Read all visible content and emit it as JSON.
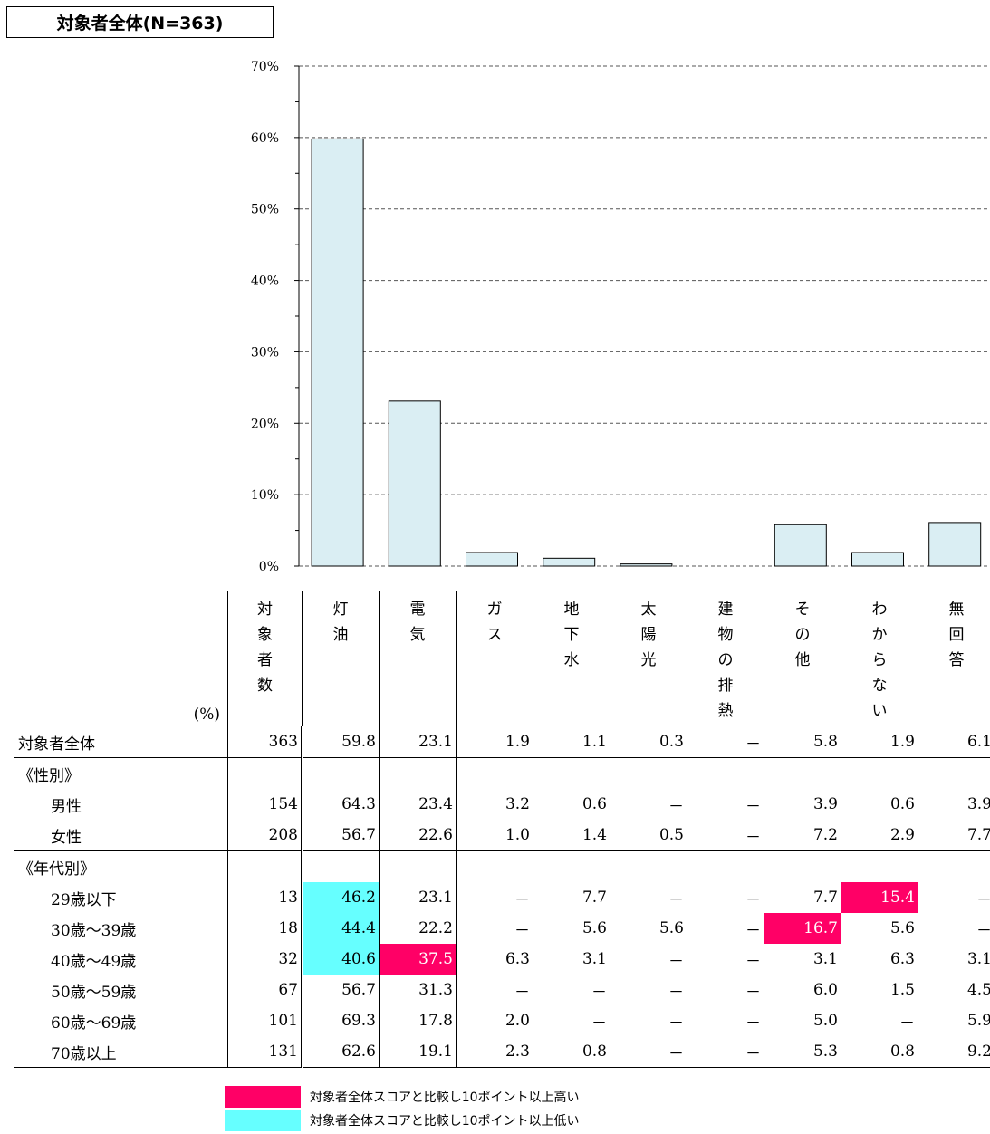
{
  "title": "対象者全体(N=363)",
  "chart_data": {
    "type": "bar",
    "categories": [
      "灯油",
      "電気",
      "ガス",
      "地下水",
      "太陽光",
      "建物の排熱",
      "その他",
      "わからない",
      "無回答"
    ],
    "values": [
      59.8,
      23.1,
      1.9,
      1.1,
      0.3,
      0,
      5.8,
      1.9,
      6.1
    ],
    "yticks": [
      "0%",
      "10%",
      "20%",
      "30%",
      "40%",
      "50%",
      "60%",
      "70%"
    ],
    "ylim": [
      0,
      70
    ],
    "grid": "horizontal dashed",
    "bar_color": "#daeef3"
  },
  "table": {
    "unit": "(%)",
    "headers": [
      "対象者数",
      "灯油",
      "電気",
      "ガス",
      "地下水",
      "太陽光",
      "建物の排熱",
      "その他",
      "わからない",
      "無回答"
    ],
    "rows": [
      {
        "label": "対象者全体",
        "cells": [
          "363",
          "59.8",
          "23.1",
          "1.9",
          "1.1",
          "0.3",
          "－",
          "5.8",
          "1.9",
          "6.1"
        ]
      },
      {
        "label": "《性別》",
        "group": true,
        "cells": []
      },
      {
        "label": "男性",
        "cells": [
          "154",
          "64.3",
          "23.4",
          "3.2",
          "0.6",
          "－",
          "－",
          "3.9",
          "0.6",
          "3.9"
        ]
      },
      {
        "label": "女性",
        "cells": [
          "208",
          "56.7",
          "22.6",
          "1.0",
          "1.4",
          "0.5",
          "－",
          "7.2",
          "2.9",
          "7.7"
        ]
      },
      {
        "label": "《年代別》",
        "group": true,
        "cells": []
      },
      {
        "label": "29歳以下",
        "cells": [
          "13",
          "46.2",
          "23.1",
          "－",
          "7.7",
          "－",
          "－",
          "7.7",
          "15.4",
          "－"
        ]
      },
      {
        "label": "30歳～39歳",
        "cells": [
          "18",
          "44.4",
          "22.2",
          "－",
          "5.6",
          "5.6",
          "－",
          "16.7",
          "5.6",
          "－"
        ]
      },
      {
        "label": "40歳～49歳",
        "cells": [
          "32",
          "40.6",
          "37.5",
          "6.3",
          "3.1",
          "－",
          "－",
          "3.1",
          "6.3",
          "3.1"
        ]
      },
      {
        "label": "50歳～59歳",
        "cells": [
          "67",
          "56.7",
          "31.3",
          "－",
          "－",
          "－",
          "－",
          "6.0",
          "1.5",
          "4.5"
        ]
      },
      {
        "label": "60歳～69歳",
        "cells": [
          "101",
          "69.3",
          "17.8",
          "2.0",
          "－",
          "－",
          "－",
          "5.0",
          "－",
          "5.9"
        ]
      },
      {
        "label": "70歳以上",
        "cells": [
          "131",
          "62.6",
          "19.1",
          "2.3",
          "0.8",
          "－",
          "－",
          "5.3",
          "0.8",
          "9.2"
        ]
      }
    ],
    "highlights": [
      {
        "row": 5,
        "col": 1,
        "type": "low"
      },
      {
        "row": 6,
        "col": 1,
        "type": "low"
      },
      {
        "row": 7,
        "col": 1,
        "type": "low"
      },
      {
        "row": 7,
        "col": 2,
        "type": "high"
      },
      {
        "row": 6,
        "col": 7,
        "type": "high"
      },
      {
        "row": 5,
        "col": 8,
        "type": "high"
      }
    ]
  },
  "legend": [
    {
      "label": "対象者全体スコアと比較し10ポイント以上高い",
      "color": "#ff0066"
    },
    {
      "label": "対象者全体スコアと比較し10ポイント以上低い",
      "color": "#66ffff"
    }
  ]
}
